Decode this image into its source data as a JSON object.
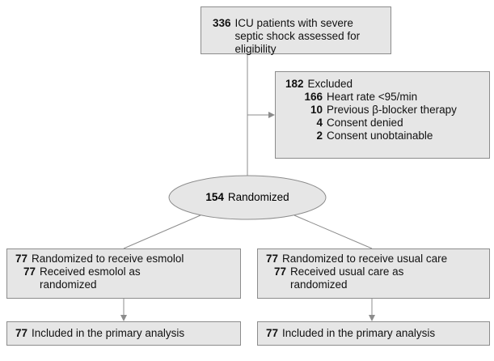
{
  "screening": {
    "count": 336,
    "label": "ICU patients with severe septic shock assessed for eligibility"
  },
  "excluded": {
    "count": 182,
    "label": "Excluded",
    "reasons": [
      {
        "count": 166,
        "label": "Heart rate <95/min"
      },
      {
        "count": 10,
        "label": "Previous β-blocker therapy"
      },
      {
        "count": 4,
        "label": "Consent denied"
      },
      {
        "count": 2,
        "label": "Consent unobtainable"
      }
    ]
  },
  "randomized": {
    "count": 154,
    "label": "Randomized"
  },
  "arms": [
    {
      "allocated": {
        "count": 77,
        "label": "Randomized to receive esmolol"
      },
      "received": {
        "count": 77,
        "label": "Received esmolol as randomized"
      },
      "analyzed": {
        "count": 77,
        "label": "Included in the primary analysis"
      }
    },
    {
      "allocated": {
        "count": 77,
        "label": "Randomized to receive usual care"
      },
      "received": {
        "count": 77,
        "label": "Received usual care as randomized"
      },
      "analyzed": {
        "count": 77,
        "label": "Included in the primary analysis"
      }
    }
  ]
}
